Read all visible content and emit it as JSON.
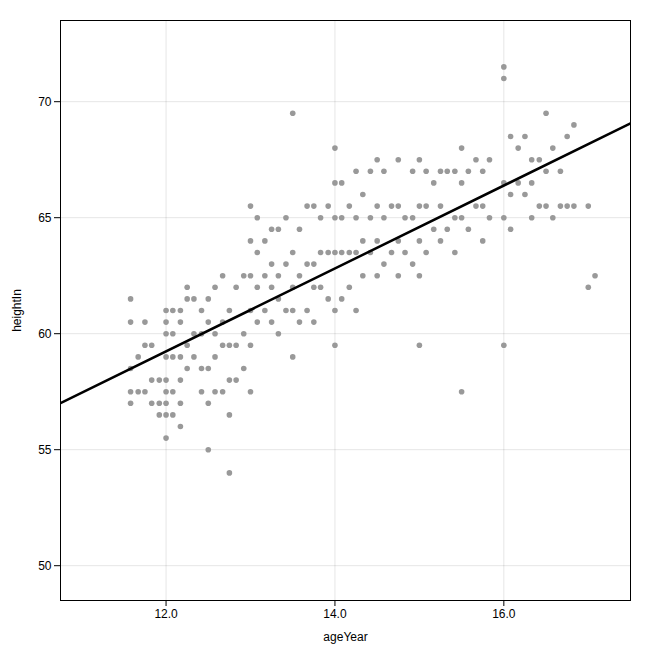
{
  "chart_data": {
    "type": "scatter",
    "xlabel": "ageYear",
    "ylabel": "heightIn",
    "xlim": [
      10.75,
      17.5
    ],
    "ylim": [
      48.5,
      73.5
    ],
    "xticks": [
      12,
      14,
      16
    ],
    "yticks": [
      50,
      55,
      60,
      65,
      70
    ],
    "grid": true,
    "series": [
      {
        "type": "scatter",
        "color": "#999999",
        "marker": "circle",
        "x": [
          11.58,
          11.58,
          11.58,
          11.58,
          11.58,
          11.67,
          11.67,
          11.75,
          11.75,
          11.75,
          11.83,
          11.83,
          11.83,
          11.92,
          11.92,
          11.92,
          12.0,
          12.0,
          12.0,
          12.0,
          12.0,
          12.0,
          12.0,
          12.0,
          12.0,
          12.08,
          12.08,
          12.08,
          12.08,
          12.08,
          12.17,
          12.17,
          12.17,
          12.17,
          12.17,
          12.17,
          12.25,
          12.25,
          12.25,
          12.25,
          12.33,
          12.33,
          12.33,
          12.42,
          12.42,
          12.42,
          12.42,
          12.5,
          12.5,
          12.5,
          12.5,
          12.5,
          12.58,
          12.58,
          12.58,
          12.58,
          12.67,
          12.67,
          12.67,
          12.67,
          12.75,
          12.75,
          12.75,
          12.75,
          12.75,
          12.83,
          12.83,
          12.83,
          12.92,
          12.92,
          12.92,
          13.0,
          13.0,
          13.0,
          13.0,
          13.0,
          13.0,
          13.08,
          13.08,
          13.08,
          13.08,
          13.17,
          13.17,
          13.17,
          13.25,
          13.25,
          13.25,
          13.25,
          13.33,
          13.33,
          13.33,
          13.33,
          13.42,
          13.42,
          13.42,
          13.5,
          13.5,
          13.5,
          13.5,
          13.5,
          13.58,
          13.58,
          13.58,
          13.67,
          13.67,
          13.67,
          13.75,
          13.75,
          13.75,
          13.75,
          13.83,
          13.83,
          13.83,
          13.92,
          13.92,
          13.92,
          14.0,
          14.0,
          14.0,
          14.0,
          14.0,
          14.0,
          14.08,
          14.08,
          14.08,
          14.08,
          14.17,
          14.17,
          14.17,
          14.25,
          14.25,
          14.25,
          14.25,
          14.33,
          14.33,
          14.33,
          14.42,
          14.42,
          14.42,
          14.5,
          14.5,
          14.5,
          14.5,
          14.58,
          14.58,
          14.58,
          14.67,
          14.67,
          14.75,
          14.75,
          14.75,
          14.75,
          14.83,
          14.83,
          14.92,
          14.92,
          14.92,
          15.0,
          15.0,
          15.0,
          15.0,
          15.0,
          15.08,
          15.08,
          15.08,
          15.17,
          15.17,
          15.25,
          15.25,
          15.25,
          15.33,
          15.33,
          15.42,
          15.42,
          15.42,
          15.5,
          15.5,
          15.5,
          15.5,
          15.58,
          15.58,
          15.67,
          15.67,
          15.75,
          15.75,
          15.75,
          15.83,
          15.83,
          16.0,
          16.0,
          16.0,
          16.0,
          16.0,
          16.08,
          16.08,
          16.08,
          16.17,
          16.17,
          16.25,
          16.25,
          16.33,
          16.33,
          16.33,
          16.42,
          16.42,
          16.5,
          16.5,
          16.5,
          16.58,
          16.58,
          16.67,
          16.67,
          16.75,
          16.75,
          16.83,
          16.83,
          17.0,
          17.0,
          17.08
        ],
        "values": [
          57.0,
          57.5,
          58.5,
          60.5,
          61.5,
          57.5,
          59.0,
          57.5,
          59.5,
          60.5,
          57.0,
          58.0,
          59.5,
          56.5,
          57.0,
          58.0,
          55.5,
          56.5,
          57.0,
          57.5,
          58.0,
          59.0,
          60.0,
          60.5,
          61.0,
          56.5,
          57.5,
          59.0,
          60.0,
          61.0,
          56.0,
          57.0,
          58.0,
          59.0,
          60.5,
          61.0,
          58.5,
          59.5,
          61.5,
          62.0,
          59.0,
          60.0,
          61.5,
          57.5,
          58.5,
          60.0,
          61.0,
          55.0,
          57.0,
          58.5,
          60.5,
          61.5,
          57.5,
          59.0,
          60.0,
          62.0,
          57.5,
          59.5,
          60.5,
          62.5,
          54.0,
          56.5,
          58.0,
          59.5,
          61.0,
          58.0,
          59.5,
          62.0,
          58.5,
          60.0,
          62.5,
          57.5,
          59.5,
          61.0,
          62.5,
          64.0,
          65.5,
          60.5,
          62.0,
          63.5,
          65.0,
          61.0,
          62.5,
          64.0,
          60.5,
          62.0,
          63.0,
          64.5,
          60.0,
          61.5,
          62.5,
          64.5,
          61.0,
          63.0,
          65.0,
          59.0,
          61.0,
          62.0,
          63.5,
          69.5,
          60.5,
          62.5,
          64.5,
          61.0,
          63.0,
          65.5,
          60.5,
          62.0,
          63.0,
          65.5,
          62.0,
          63.5,
          65.0,
          61.5,
          63.5,
          65.5,
          59.5,
          61.0,
          63.5,
          65.0,
          66.5,
          68.0,
          61.5,
          63.5,
          65.0,
          66.5,
          62.0,
          63.5,
          65.5,
          61.0,
          63.5,
          65.0,
          67.0,
          62.5,
          64.0,
          66.0,
          63.5,
          65.0,
          67.0,
          62.5,
          64.0,
          65.5,
          67.5,
          63.0,
          65.0,
          67.0,
          63.5,
          65.5,
          62.5,
          64.0,
          65.5,
          67.5,
          63.5,
          65.0,
          63.0,
          65.0,
          67.0,
          59.5,
          62.5,
          64.0,
          65.5,
          67.5,
          63.5,
          65.5,
          67.0,
          64.5,
          66.5,
          64.0,
          65.5,
          67.0,
          64.5,
          67.0,
          63.5,
          65.0,
          67.0,
          57.5,
          65.0,
          66.5,
          68.0,
          64.5,
          67.0,
          65.5,
          67.5,
          64.0,
          65.5,
          67.0,
          65.0,
          67.5,
          59.5,
          65.0,
          66.5,
          71.5,
          71.0,
          64.5,
          66.0,
          68.5,
          66.5,
          68.0,
          66.0,
          68.5,
          65.0,
          66.5,
          67.5,
          65.5,
          67.5,
          65.5,
          67.0,
          69.5,
          65.0,
          68.0,
          65.5,
          67.0,
          65.5,
          68.5,
          65.5,
          69.0,
          62.0,
          65.5,
          62.5
        ]
      },
      {
        "type": "line",
        "color": "#000000",
        "line_style": "solid",
        "x": [
          10.75,
          17.5
        ],
        "values": [
          57.003,
          69.067
        ]
      }
    ]
  }
}
